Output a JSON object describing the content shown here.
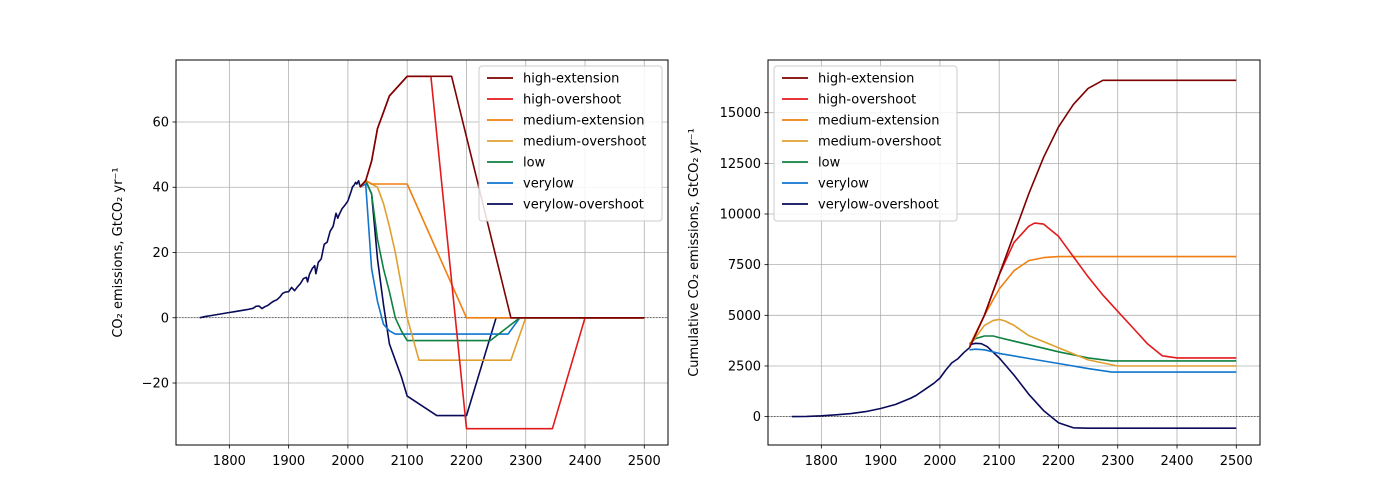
{
  "chart_data": [
    {
      "type": "line",
      "title": "",
      "xlabel": "",
      "ylabel": "CO₂ emissions, GtCO₂ yr⁻¹",
      "xlim": [
        1710,
        2540
      ],
      "ylim": [
        -39,
        79
      ],
      "xticks": [
        1800,
        1900,
        2000,
        2100,
        2200,
        2300,
        2400,
        2500
      ],
      "yticks": [
        -20,
        0,
        20,
        40,
        60
      ],
      "ytick_labels": [
        "−20",
        "0",
        "20",
        "40",
        "60"
      ],
      "grid": true,
      "zero_line": true,
      "legend": "top-right",
      "series": [
        {
          "name": "high-extension",
          "color": "#7f0000",
          "x": [
            2020,
            2030,
            2040,
            2050,
            2060,
            2070,
            2080,
            2090,
            2100,
            2175,
            2275,
            2500
          ],
          "y": [
            40,
            42,
            48,
            58,
            63,
            68,
            70,
            72,
            74,
            74,
            0,
            0
          ]
        },
        {
          "name": "high-overshoot",
          "color": "#e31a1c",
          "x": [
            2020,
            2030,
            2040,
            2050,
            2060,
            2070,
            2080,
            2090,
            2100,
            2140,
            2200,
            2345,
            2400,
            2500
          ],
          "y": [
            40,
            42,
            48,
            58,
            63,
            68,
            70,
            72,
            74,
            74,
            -34,
            -34,
            0,
            0
          ]
        },
        {
          "name": "medium-extension",
          "color": "#f07f0f",
          "x": [
            2020,
            2030,
            2040,
            2100,
            2200,
            2500
          ],
          "y": [
            40,
            42,
            41,
            41,
            0,
            0
          ]
        },
        {
          "name": "medium-overshoot",
          "color": "#e0a030",
          "x": [
            2020,
            2030,
            2040,
            2050,
            2060,
            2070,
            2080,
            2090,
            2100,
            2120,
            2275,
            2300,
            2500
          ],
          "y": [
            40,
            42,
            41,
            40,
            35,
            28,
            20,
            10,
            0,
            -13,
            -13,
            0,
            0
          ]
        },
        {
          "name": "low",
          "color": "#0e8040",
          "x": [
            2020,
            2030,
            2040,
            2050,
            2060,
            2070,
            2080,
            2090,
            2100,
            2240,
            2290,
            2500
          ],
          "y": [
            40,
            42,
            38,
            24,
            15,
            8,
            0,
            -4,
            -7,
            -7,
            0,
            0
          ]
        },
        {
          "name": "verylow",
          "color": "#0f75cf",
          "x": [
            2020,
            2030,
            2040,
            2050,
            2060,
            2070,
            2080,
            2090,
            2100,
            2270,
            2290,
            2500
          ],
          "y": [
            40,
            41,
            15,
            5,
            -2,
            -4,
            -5,
            -5,
            -5,
            -5,
            0,
            0
          ]
        },
        {
          "name": "verylow-overshoot",
          "color": "#0a0a5a",
          "x": [
            2020,
            2030,
            2040,
            2050,
            2060,
            2070,
            2080,
            2090,
            2100,
            2150,
            2200,
            2250,
            2500
          ],
          "y": [
            40,
            42,
            38,
            18,
            4,
            -8,
            -13,
            -18,
            -24,
            -30,
            -30,
            0,
            0
          ]
        }
      ],
      "shared_history": {
        "color": "#0a0a5a",
        "x": [
          1750,
          1760,
          1770,
          1780,
          1790,
          1800,
          1810,
          1820,
          1830,
          1840,
          1845,
          1850,
          1855,
          1860,
          1865,
          1870,
          1875,
          1880,
          1885,
          1890,
          1895,
          1900,
          1905,
          1910,
          1915,
          1920,
          1925,
          1930,
          1932,
          1935,
          1940,
          1944,
          1946,
          1950,
          1955,
          1960,
          1965,
          1970,
          1975,
          1980,
          1983,
          1985,
          1990,
          1995,
          2000,
          2005,
          2008,
          2010,
          2013,
          2015,
          2018,
          2020
        ],
        "y": [
          0,
          0.4,
          0.7,
          1.0,
          1.3,
          1.6,
          1.9,
          2.2,
          2.5,
          2.9,
          3.5,
          3.6,
          2.8,
          3.4,
          3.8,
          4.5,
          5.1,
          5.5,
          6.3,
          7.5,
          7.9,
          8.0,
          9.3,
          8.3,
          9.5,
          10.5,
          12.0,
          12.4,
          11.0,
          13.3,
          15.1,
          16.0,
          13.5,
          17.0,
          18.0,
          22.5,
          23.2,
          26.5,
          28.0,
          32.0,
          30.5,
          31.5,
          33.4,
          34.5,
          35.8,
          38.5,
          40.2,
          40.5,
          41.5,
          41.0,
          42.0,
          40.5
        ]
      }
    },
    {
      "type": "line",
      "title": "",
      "xlabel": "",
      "ylabel": "Cumulative CO₂ emissions, GtCO₂ yr⁻¹",
      "xlim": [
        1710,
        2540
      ],
      "ylim": [
        -1400,
        17600
      ],
      "xticks": [
        1800,
        1900,
        2000,
        2100,
        2200,
        2300,
        2400,
        2500
      ],
      "yticks": [
        0,
        2500,
        5000,
        7500,
        10000,
        12500,
        15000
      ],
      "grid": true,
      "zero_line": true,
      "legend": "top-left",
      "series": [
        {
          "name": "high-extension",
          "color": "#7f0000",
          "x": [
            2050,
            2075,
            2100,
            2125,
            2150,
            2175,
            2200,
            2225,
            2250,
            2275,
            2300,
            2500
          ],
          "y": [
            3400,
            5000,
            7000,
            9000,
            11000,
            12800,
            14300,
            15400,
            16200,
            16600,
            16600,
            16600
          ]
        },
        {
          "name": "high-overshoot",
          "color": "#e31a1c",
          "x": [
            2050,
            2075,
            2100,
            2125,
            2150,
            2160,
            2175,
            2200,
            2225,
            2250,
            2275,
            2300,
            2325,
            2350,
            2375,
            2400,
            2500
          ],
          "y": [
            3400,
            5000,
            7000,
            8600,
            9400,
            9550,
            9500,
            8900,
            7900,
            6900,
            6000,
            5200,
            4400,
            3600,
            3000,
            2900,
            2900
          ]
        },
        {
          "name": "medium-extension",
          "color": "#f07f0f",
          "x": [
            2050,
            2075,
            2100,
            2125,
            2150,
            2175,
            2200,
            2225,
            2500
          ],
          "y": [
            3500,
            5000,
            6300,
            7200,
            7700,
            7850,
            7900,
            7900,
            7900
          ]
        },
        {
          "name": "medium-overshoot",
          "color": "#e0a030",
          "x": [
            2050,
            2075,
            2090,
            2100,
            2110,
            2125,
            2150,
            2200,
            2250,
            2300,
            2500
          ],
          "y": [
            3500,
            4500,
            4750,
            4800,
            4720,
            4500,
            4000,
            3400,
            2800,
            2500,
            2500
          ]
        },
        {
          "name": "low",
          "color": "#0e8040",
          "x": [
            2050,
            2060,
            2075,
            2090,
            2100,
            2150,
            2200,
            2250,
            2290,
            2500
          ],
          "y": [
            3600,
            3850,
            3980,
            3980,
            3900,
            3550,
            3200,
            2900,
            2750,
            2750
          ]
        },
        {
          "name": "verylow",
          "color": "#0f75cf",
          "x": [
            2050,
            2060,
            2075,
            2100,
            2150,
            2200,
            2250,
            2290,
            2500
          ],
          "y": [
            3300,
            3330,
            3300,
            3120,
            2870,
            2620,
            2370,
            2200,
            2200
          ]
        },
        {
          "name": "verylow-overshoot",
          "color": "#0a0a5a",
          "x": [
            2050,
            2060,
            2070,
            2080,
            2100,
            2125,
            2150,
            2175,
            2200,
            2225,
            2250,
            2500
          ],
          "y": [
            3550,
            3620,
            3600,
            3450,
            2900,
            2050,
            1100,
            300,
            -300,
            -550,
            -570,
            -570
          ]
        }
      ],
      "shared_history": {
        "color": "#0a0a5a",
        "x": [
          1750,
          1775,
          1800,
          1825,
          1850,
          1875,
          1900,
          1925,
          1950,
          1960,
          1975,
          1990,
          2000,
          2010,
          2020,
          2030,
          2040,
          2050
        ],
        "y": [
          0,
          10,
          40,
          90,
          150,
          250,
          400,
          600,
          900,
          1050,
          1350,
          1650,
          1900,
          2300,
          2650,
          2850,
          3150,
          3400
        ]
      }
    }
  ]
}
